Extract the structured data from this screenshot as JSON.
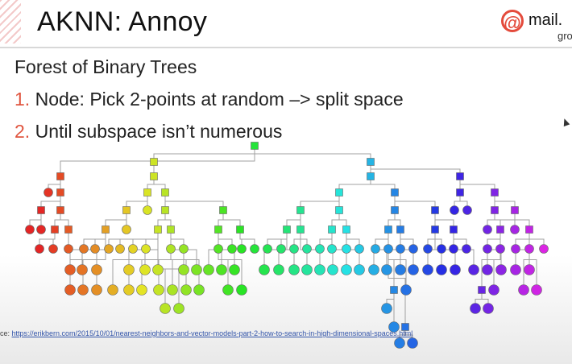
{
  "slide": {
    "title": "AKNN: Annoy",
    "logo": {
      "brand": "mail.",
      "sub": "gro"
    },
    "lines": [
      {
        "num": "",
        "text": "Forest of Binary Trees"
      },
      {
        "num": "1.",
        "text": " Node: Pick 2-points at random –> split space"
      },
      {
        "num": "2.",
        "text": " Until subspace isn’t numerous"
      }
    ],
    "caption_prefix": "ce: ",
    "caption_link": "https://erikbern.com/2015/10/01/nearest-neighbors-and-vector-models-part-2-how-to-search-in-high-dimensional-spaces.html"
  },
  "colors": {
    "accent": "#e0553f",
    "tree_edge": "#999999"
  }
}
